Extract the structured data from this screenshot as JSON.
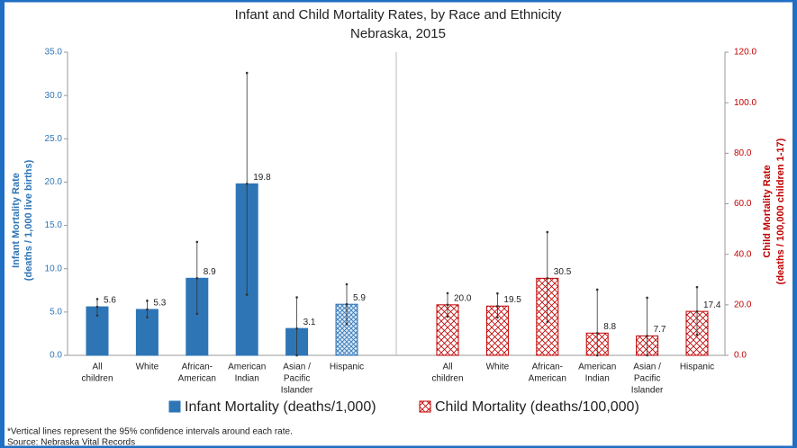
{
  "chart_data": {
    "type": "bar",
    "title": "Infant and Child Mortality Rates, by Race and Ethnicity",
    "subtitle": "Nebraska, 2015",
    "y_label": [
      "Infant Mortality Rate",
      "(deaths / 1,000 live births)"
    ],
    "y2_label": [
      "Child Mortality Rate",
      "(deaths / 100,000 children 1-17)"
    ],
    "categories": [
      [
        "All",
        "children"
      ],
      [
        "White"
      ],
      [
        "African-",
        "American"
      ],
      [
        "American",
        "Indian"
      ],
      [
        "Asian /",
        "Pacific",
        "Islander"
      ],
      [
        "Hispanic"
      ]
    ],
    "ylim": [
      0,
      35
    ],
    "yticks": [
      {
        "value": 0,
        "label": "0.0"
      },
      {
        "value": 5,
        "label": "5.0"
      },
      {
        "value": 10,
        "label": "10.0"
      },
      {
        "value": 15,
        "label": "15.0"
      },
      {
        "value": 20,
        "label": "20.0"
      },
      {
        "value": 25,
        "label": "25.0"
      },
      {
        "value": 30,
        "label": "30.0"
      },
      {
        "value": 35,
        "label": "35.0"
      }
    ],
    "y2lim": [
      0,
      120
    ],
    "y2ticks": [
      {
        "value": 0,
        "label": "0.0"
      },
      {
        "value": 20,
        "label": "20.0"
      },
      {
        "value": 40,
        "label": "40.0"
      },
      {
        "value": 60,
        "label": "60.0"
      },
      {
        "value": 80,
        "label": "80.0"
      },
      {
        "value": 100,
        "label": "100.0"
      },
      {
        "value": 120,
        "label": "120.0"
      }
    ],
    "series": [
      {
        "name": "Infant Mortality (deaths/1,000)",
        "color": "#2e75b6",
        "axis": "y",
        "values": [
          5.6,
          5.3,
          8.9,
          19.8,
          3.1,
          5.9
        ],
        "ci_low": [
          4.6,
          4.4,
          4.8,
          7.0,
          0,
          3.6
        ],
        "ci_high": [
          6.5,
          6.3,
          13.1,
          32.6,
          6.7,
          8.2
        ],
        "patterns": [
          "solid",
          "solid",
          "solid",
          "solid",
          "solid",
          "dots"
        ]
      },
      {
        "name": "Child Mortality (deaths/100,000)",
        "color": "#c00000",
        "axis": "y2",
        "values": [
          20.0,
          19.5,
          30.5,
          8.8,
          7.7,
          17.4
        ],
        "value_labels": [
          "20.0",
          "19.5",
          "30.5",
          "8.8",
          "7.7",
          "17.4"
        ],
        "ci_low": [
          15.3,
          15,
          13.2,
          0,
          0,
          8.2
        ],
        "ci_high": [
          24.6,
          24.5,
          48.8,
          26,
          22.8,
          27
        ],
        "patterns": [
          "crosshatch",
          "crosshatch",
          "crosshatch",
          "crosshatch",
          "crosshatch",
          "crosshatch"
        ]
      }
    ],
    "notes": [
      "*Vertical lines represent the 95% confidence intervals around each rate.",
      "Source: Nebraska Vital Records"
    ]
  }
}
